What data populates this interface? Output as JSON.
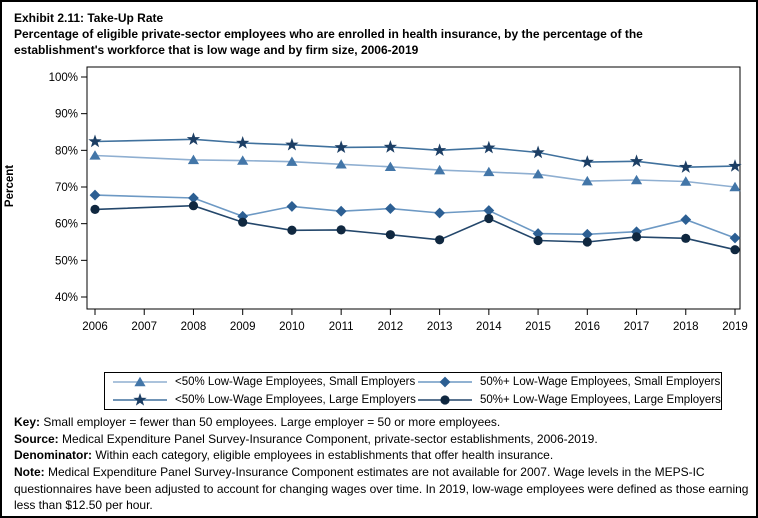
{
  "page": {
    "title": "Exhibit 2.11: Take-Up Rate",
    "subtitle_line1": "Percentage of eligible private-sector employees who are enrolled in health insurance, by the percentage of the",
    "subtitle_line2": "establishment's workforce that is low wage and by firm size, 2006-2019"
  },
  "chart_data": {
    "type": "line",
    "title": "Exhibit 2.11: Take-Up Rate",
    "xlabel": "",
    "ylabel": "Percent",
    "ylim": [
      40,
      100
    ],
    "y_tick_values": [
      100,
      90,
      80,
      70,
      60,
      50,
      40
    ],
    "y_tick_labels": [
      "100%",
      "90%",
      "80%",
      "70%",
      "60%",
      "50%",
      "40%"
    ],
    "x_tick_labels": [
      "2006",
      "2007",
      "2008",
      "2009",
      "2010",
      "2011",
      "2012",
      "2013",
      "2014",
      "2015",
      "2016",
      "2017",
      "2018",
      "2019"
    ],
    "x": [
      2006,
      2008,
      2009,
      2010,
      2011,
      2012,
      2013,
      2014,
      2015,
      2016,
      2017,
      2018,
      2019
    ],
    "grid": false,
    "legend_position": "bottom",
    "legend_order": [
      0,
      2,
      1,
      3
    ],
    "series": [
      {
        "name": "<50% Low-Wage Employees, Small Employers",
        "marker": "triangle",
        "marker_color": "#4376A8",
        "line_color": "#8FAFD1",
        "values": [
          78.6,
          77.4,
          77.2,
          76.9,
          76.2,
          75.5,
          74.6,
          74.1,
          73.5,
          71.6,
          71.9,
          71.5,
          70.0
        ]
      },
      {
        "name": "<50% Low-Wage Employees, Large Employers",
        "marker": "star",
        "marker_color": "#1C3E64",
        "line_color": "#40719D",
        "values": [
          82.4,
          83.0,
          82.0,
          81.5,
          80.8,
          80.9,
          80.0,
          80.7,
          79.4,
          76.8,
          77.0,
          75.4,
          75.7
        ]
      },
      {
        "name": "50%+ Low-Wage Employees, Small Employers",
        "marker": "diamond",
        "marker_color": "#2C5F93",
        "line_color": "#6D99C4",
        "values": [
          67.8,
          67.0,
          62.0,
          64.7,
          63.4,
          64.1,
          62.9,
          63.6,
          57.3,
          57.1,
          57.8,
          61.1,
          56.1
        ]
      },
      {
        "name": "50%+ Low-Wage Employees, Large Employers",
        "marker": "circle",
        "marker_color": "#102840",
        "line_color": "#24476B",
        "values": [
          63.9,
          64.9,
          60.4,
          58.2,
          58.3,
          57.0,
          55.6,
          61.4,
          55.4,
          55.0,
          56.4,
          56.0,
          52.9
        ]
      }
    ]
  },
  "footer": {
    "key_label": "Key:",
    "key_text": "Small employer = fewer than 50 employees. Large employer = 50 or more employees.",
    "source_label": "Source:",
    "source_text": "Medical Expenditure Panel Survey-Insurance Component, private-sector establishments, 2006-2019.",
    "denominator_label": "Denominator:",
    "denominator_text": "Within each category, eligible employees in establishments that offer health insurance.",
    "note_label": "Note:",
    "note_text": "Medical Expenditure Panel Survey-Insurance Component estimates are not available for 2007. Wage levels in the MEPS-IC questionnaires have been adjusted to account for changing wages over time. In 2019, low-wage employees were defined as those earning less than $12.50 per hour."
  }
}
